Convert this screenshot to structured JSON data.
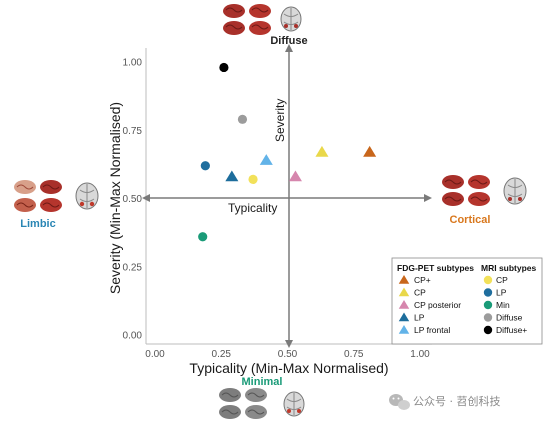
{
  "chart_data": {
    "type": "scatter",
    "xlabel": "Typicality (Min-Max Normalised)",
    "ylabel": "Severity (Min-Max Normalised)",
    "xlim": [
      0,
      1
    ],
    "ylim": [
      0,
      1
    ],
    "x_ticks": [
      "0.00",
      "0.25",
      "0.50",
      "0.75",
      "1.00"
    ],
    "y_ticks": [
      "0.00",
      "0.25",
      "0.50",
      "0.75",
      "1.00"
    ],
    "grid": false,
    "center_axes": {
      "horizontal_label": "Typicality",
      "vertical_label": "Severity"
    },
    "corner_labels": {
      "top": "Diffuse",
      "left": "Limbic",
      "right": "Cortical",
      "bottom": "Minimal"
    },
    "legend_placement": "bottom-right",
    "legend_groups": [
      {
        "title": "FDG-PET subtypes",
        "series": [
          {
            "name": "CP+",
            "marker": "triangle",
            "color": "#c8661b",
            "x": 0.81,
            "y": 0.67
          },
          {
            "name": "CP",
            "marker": "triangle",
            "color": "#e9d84a",
            "x": 0.63,
            "y": 0.67
          },
          {
            "name": "CP posterior",
            "marker": "triangle",
            "color": "#d686ad",
            "x": 0.53,
            "y": 0.58
          },
          {
            "name": "LP",
            "marker": "triangle",
            "color": "#1d6d9c",
            "x": 0.29,
            "y": 0.58
          },
          {
            "name": "LP frontal",
            "marker": "triangle",
            "color": "#62b3e8",
            "x": 0.42,
            "y": 0.64
          }
        ]
      },
      {
        "title": "MRI subtypes",
        "series": [
          {
            "name": "CP",
            "marker": "circle",
            "color": "#f2e15a",
            "x": 0.37,
            "y": 0.57
          },
          {
            "name": "LP",
            "marker": "circle",
            "color": "#1f6e9e",
            "x": 0.19,
            "y": 0.62
          },
          {
            "name": "Min",
            "marker": "circle",
            "color": "#1a9b78",
            "x": 0.18,
            "y": 0.36
          },
          {
            "name": "Diffuse",
            "marker": "circle",
            "color": "#9c9c9c",
            "x": 0.33,
            "y": 0.79
          },
          {
            "name": "Diffuse+",
            "marker": "circle",
            "color": "#000000",
            "x": 0.26,
            "y": 0.98
          }
        ]
      }
    ],
    "colors": {
      "limbic": "#2a86b4",
      "cortical": "#d9781e",
      "minimal": "#1a9b78",
      "diffuse": "#222222",
      "brain_red": "#a8302a",
      "brain_grey": "#8a8a8a"
    }
  },
  "watermark": "公众号 · 苕创科技",
  "icons": {
    "brain": "brain-icon",
    "watermark": "wechat-logo-icon"
  }
}
